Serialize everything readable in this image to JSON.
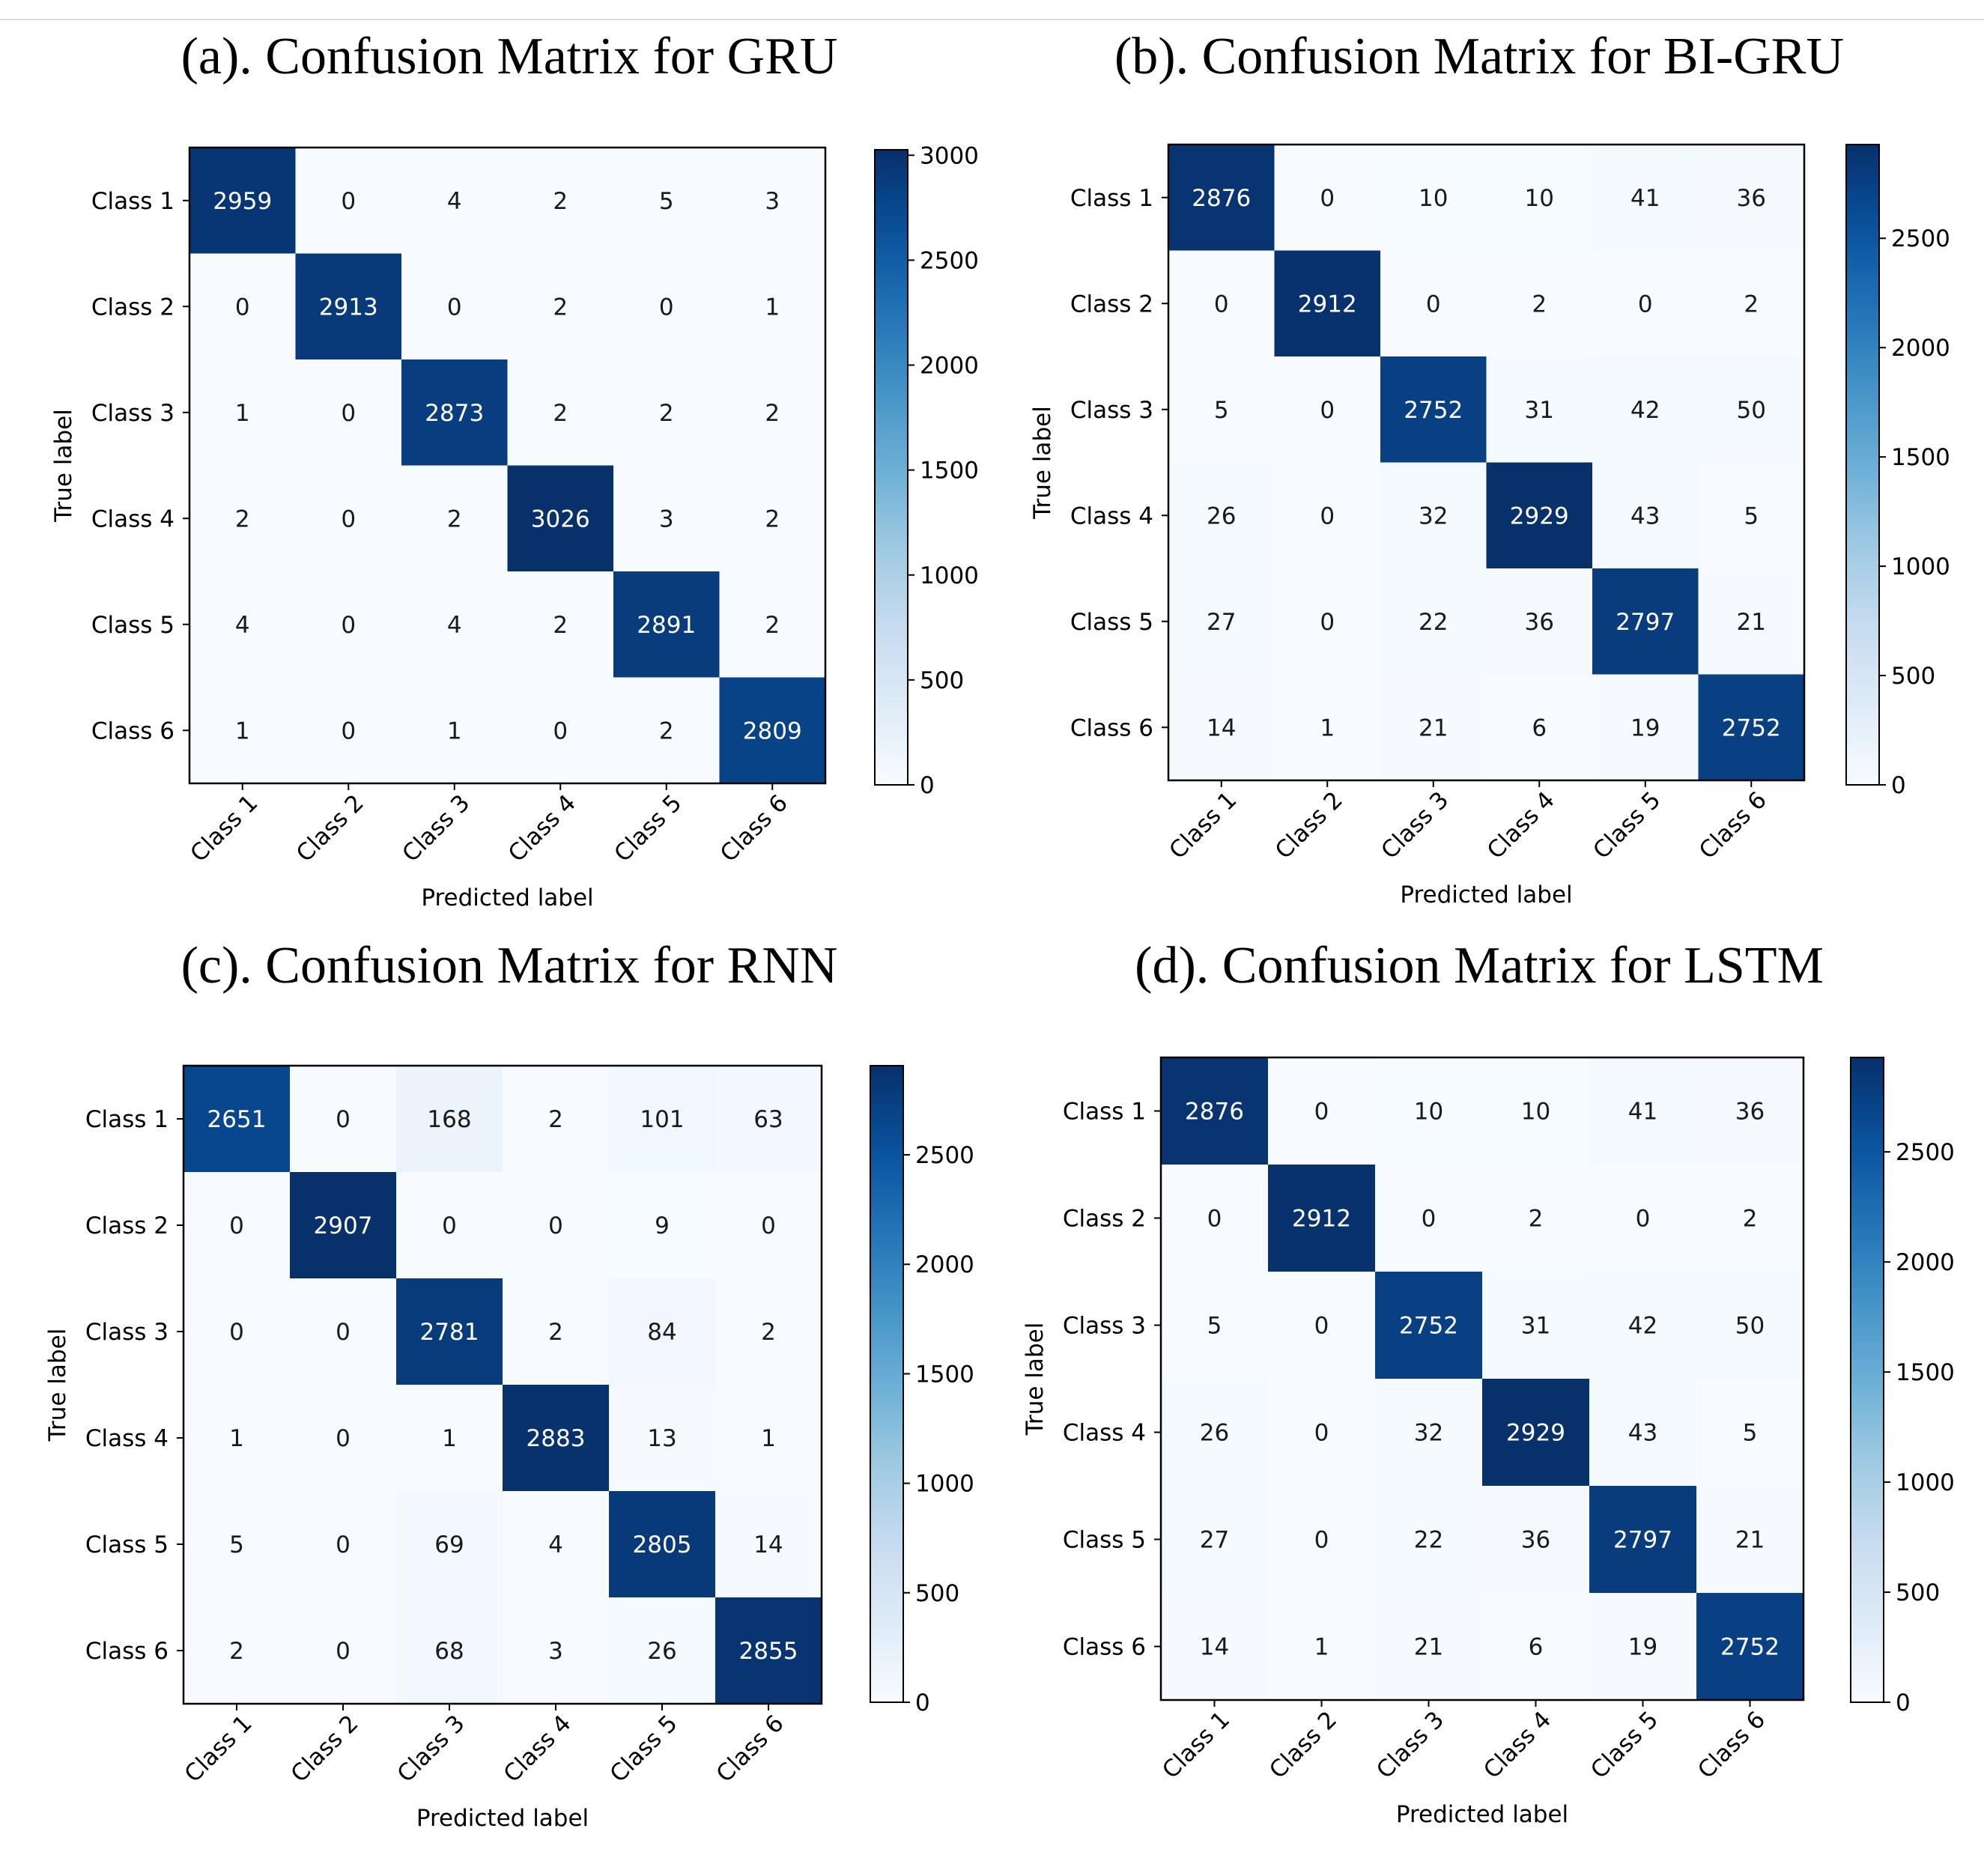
{
  "chart_data": [
    {
      "type": "heatmap",
      "title": "(a). Confusion Matrix for GRU",
      "xlabel": "Predicted label",
      "ylabel": "True label",
      "row_labels": [
        "Class 1",
        "Class 2",
        "Class 3",
        "Class 4",
        "Class 5",
        "Class 6"
      ],
      "col_labels": [
        "Class 1",
        "Class 2",
        "Class 3",
        "Class 4",
        "Class 5",
        "Class 6"
      ],
      "matrix": [
        [
          2959,
          0,
          4,
          2,
          5,
          3
        ],
        [
          0,
          2913,
          0,
          2,
          0,
          1
        ],
        [
          1,
          0,
          2873,
          2,
          2,
          2
        ],
        [
          2,
          0,
          2,
          3026,
          3,
          2
        ],
        [
          4,
          0,
          4,
          2,
          2891,
          2
        ],
        [
          1,
          0,
          1,
          0,
          2,
          2809
        ]
      ],
      "colorbar_range": [
        0,
        3026
      ],
      "colorbar_ticks": [
        0,
        500,
        1000,
        1500,
        2000,
        2500,
        3000
      ],
      "colormap": "Blues"
    },
    {
      "type": "heatmap",
      "title": "(b). Confusion Matrix for BI-GRU",
      "xlabel": "Predicted label",
      "ylabel": "True label",
      "row_labels": [
        "Class 1",
        "Class 2",
        "Class 3",
        "Class 4",
        "Class 5",
        "Class 6"
      ],
      "col_labels": [
        "Class 1",
        "Class 2",
        "Class 3",
        "Class 4",
        "Class 5",
        "Class 6"
      ],
      "matrix": [
        [
          2876,
          0,
          10,
          10,
          41,
          36
        ],
        [
          0,
          2912,
          0,
          2,
          0,
          2
        ],
        [
          5,
          0,
          2752,
          31,
          42,
          50
        ],
        [
          26,
          0,
          32,
          2929,
          43,
          5
        ],
        [
          27,
          0,
          22,
          36,
          2797,
          21
        ],
        [
          14,
          1,
          21,
          6,
          19,
          2752
        ]
      ],
      "colorbar_range": [
        0,
        2929
      ],
      "colorbar_ticks": [
        0,
        500,
        1000,
        1500,
        2000,
        2500
      ],
      "colormap": "Blues"
    },
    {
      "type": "heatmap",
      "title": "(c). Confusion Matrix for RNN",
      "xlabel": "Predicted label",
      "ylabel": "True label",
      "row_labels": [
        "Class 1",
        "Class 2",
        "Class 3",
        "Class 4",
        "Class 5",
        "Class 6"
      ],
      "col_labels": [
        "Class 1",
        "Class 2",
        "Class 3",
        "Class 4",
        "Class 5",
        "Class 6"
      ],
      "matrix": [
        [
          2651,
          0,
          168,
          2,
          101,
          63
        ],
        [
          0,
          2907,
          0,
          0,
          9,
          0
        ],
        [
          0,
          0,
          2781,
          2,
          84,
          2
        ],
        [
          1,
          0,
          1,
          2883,
          13,
          1
        ],
        [
          5,
          0,
          69,
          4,
          2805,
          14
        ],
        [
          2,
          0,
          68,
          3,
          26,
          2855
        ]
      ],
      "colorbar_range": [
        0,
        2907
      ],
      "colorbar_ticks": [
        0,
        500,
        1000,
        1500,
        2000,
        2500
      ],
      "colormap": "Blues"
    },
    {
      "type": "heatmap",
      "title": "(d). Confusion Matrix for LSTM",
      "xlabel": "Predicted label",
      "ylabel": "True label",
      "row_labels": [
        "Class 1",
        "Class 2",
        "Class 3",
        "Class 4",
        "Class 5",
        "Class 6"
      ],
      "col_labels": [
        "Class 1",
        "Class 2",
        "Class 3",
        "Class 4",
        "Class 5",
        "Class 6"
      ],
      "matrix": [
        [
          2876,
          0,
          10,
          10,
          41,
          36
        ],
        [
          0,
          2912,
          0,
          2,
          0,
          2
        ],
        [
          5,
          0,
          2752,
          31,
          42,
          50
        ],
        [
          26,
          0,
          32,
          2929,
          43,
          5
        ],
        [
          27,
          0,
          22,
          36,
          2797,
          21
        ],
        [
          14,
          1,
          21,
          6,
          19,
          2752
        ]
      ],
      "colorbar_range": [
        0,
        2929
      ],
      "colorbar_ticks": [
        0,
        500,
        1000,
        1500,
        2000,
        2500
      ],
      "colormap": "Blues"
    }
  ]
}
